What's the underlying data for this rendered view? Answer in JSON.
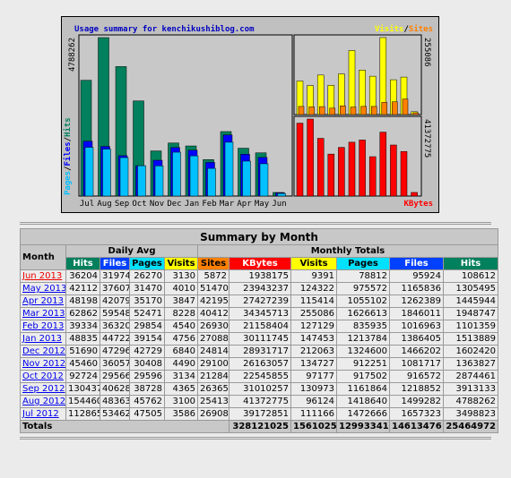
{
  "chart_data": [
    {
      "type": "bar",
      "title": "Usage summary for kenchikushiblog.com",
      "categories": [
        "Jul",
        "Aug",
        "Sep",
        "Oct",
        "Nov",
        "Dec",
        "Jan",
        "Feb",
        "Mar",
        "Apr",
        "May",
        "Jun"
      ],
      "legend_separator": "/",
      "series": [
        {
          "name": "Hits",
          "color": "#00805c",
          "values": [
            3498823,
            4788262,
            3913133,
            2874461,
            1363827,
            1602420,
            1513889,
            1101359,
            1948747,
            1445944,
            1305495,
            108612
          ]
        },
        {
          "name": "Files",
          "color": "#0000ff",
          "values": [
            1657323,
            1499282,
            1218852,
            916572,
            1081717,
            1466202,
            1386405,
            1016963,
            1846011,
            1262389,
            1165836,
            95924
          ]
        },
        {
          "name": "Pages",
          "color": "#00c0ff",
          "values": [
            1472666,
            1418640,
            1161864,
            917502,
            912251,
            1324600,
            1213784,
            835935,
            1626613,
            1055102,
            975572,
            78812
          ]
        }
      ],
      "ylim": [
        0,
        4788262
      ],
      "yticks": [
        4788262
      ]
    },
    {
      "type": "bar",
      "legend_separator": "/",
      "series": [
        {
          "name": "Visits",
          "color": "#ffff00",
          "values": [
            111166,
            96124,
            130973,
            97177,
            134727,
            212063,
            147453,
            127129,
            255086,
            115414,
            124322,
            9391
          ]
        },
        {
          "name": "Sites",
          "color": "#ff8000",
          "values": [
            26908,
            25413,
            26365,
            21284,
            29100,
            24814,
            27088,
            26930,
            40412,
            42195,
            51470,
            5872
          ]
        }
      ],
      "ylim": [
        0,
        255086
      ],
      "yticks": [
        255086
      ]
    },
    {
      "type": "bar",
      "series": [
        {
          "name": "KBytes",
          "color": "#ff0000",
          "values": [
            39172851,
            41372775,
            31010257,
            22545855,
            26163057,
            28931717,
            30111745,
            21158404,
            34345713,
            27427239,
            23943237,
            1938175
          ]
        }
      ],
      "ylim": [
        0,
        41372775
      ],
      "yticks": [
        41372775
      ]
    }
  ],
  "table": {
    "title": "Summary by Month",
    "month_header": "Month",
    "group_headers": [
      "Daily Avg",
      "Monthly Totals"
    ],
    "daily_columns": [
      "Hits",
      "Files",
      "Pages",
      "Visits"
    ],
    "daily_colors": [
      "#00805c",
      "#0040ff",
      "#00e0ff",
      "#ffff00"
    ],
    "monthly_columns": [
      "Sites",
      "KBytes",
      "Visits",
      "Pages",
      "Files",
      "Hits"
    ],
    "monthly_colors": [
      "#ff8000",
      "#ff0000",
      "#ffff00",
      "#00e0ff",
      "#0040ff",
      "#00805c"
    ],
    "rows": [
      {
        "month": "Jun 2013",
        "daily": [
          36204,
          31974,
          26270,
          3130
        ],
        "monthly": [
          5872,
          1938175,
          9391,
          78812,
          95924,
          108612
        ]
      },
      {
        "month": "May 2013",
        "daily": [
          42112,
          37607,
          31470,
          4010
        ],
        "monthly": [
          51470,
          23943237,
          124322,
          975572,
          1165836,
          1305495
        ]
      },
      {
        "month": "Apr 2013",
        "daily": [
          48198,
          42079,
          35170,
          3847
        ],
        "monthly": [
          42195,
          27427239,
          115414,
          1055102,
          1262389,
          1445944
        ]
      },
      {
        "month": "Mar 2013",
        "daily": [
          62862,
          59548,
          52471,
          8228
        ],
        "monthly": [
          40412,
          34345713,
          255086,
          1626613,
          1846011,
          1948747
        ]
      },
      {
        "month": "Feb 2013",
        "daily": [
          39334,
          36320,
          29854,
          4540
        ],
        "monthly": [
          26930,
          21158404,
          127129,
          835935,
          1016963,
          1101359
        ]
      },
      {
        "month": "Jan 2013",
        "daily": [
          48835,
          44722,
          39154,
          4756
        ],
        "monthly": [
          27088,
          30111745,
          147453,
          1213784,
          1386405,
          1513889
        ]
      },
      {
        "month": "Dec 2012",
        "daily": [
          51690,
          47296,
          42729,
          6840
        ],
        "monthly": [
          24814,
          28931717,
          212063,
          1324600,
          1466202,
          1602420
        ]
      },
      {
        "month": "Nov 2012",
        "daily": [
          45460,
          36057,
          30408,
          4490
        ],
        "monthly": [
          29100,
          26163057,
          134727,
          912251,
          1081717,
          1363827
        ]
      },
      {
        "month": "Oct 2012",
        "daily": [
          92724,
          29566,
          29596,
          3134
        ],
        "monthly": [
          21284,
          22545855,
          97177,
          917502,
          916572,
          2874461
        ]
      },
      {
        "month": "Sep 2012",
        "daily": [
          130437,
          40628,
          38728,
          4365
        ],
        "monthly": [
          26365,
          31010257,
          130973,
          1161864,
          1218852,
          3913133
        ]
      },
      {
        "month": "Aug 2012",
        "daily": [
          154460,
          48363,
          45762,
          3100
        ],
        "monthly": [
          25413,
          41372775,
          96124,
          1418640,
          1499282,
          4788262
        ]
      },
      {
        "month": "Jul 2012",
        "daily": [
          112865,
          53462,
          47505,
          3586
        ],
        "monthly": [
          26908,
          39172851,
          111166,
          1472666,
          1657323,
          3498823
        ]
      }
    ],
    "totals_label": "Totals",
    "totals": [
      328121025,
      1561025,
      12993341,
      14613476,
      25464972
    ]
  }
}
